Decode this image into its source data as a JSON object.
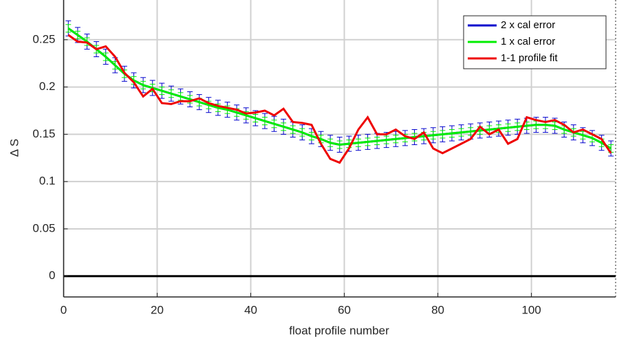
{
  "chart_data": {
    "type": "line",
    "xlabel": "float profile number",
    "ylabel": "Δ S",
    "x": [
      1,
      3,
      5,
      7,
      9,
      11,
      13,
      15,
      17,
      19,
      21,
      23,
      25,
      27,
      29,
      31,
      33,
      35,
      37,
      39,
      41,
      43,
      45,
      47,
      49,
      51,
      53,
      55,
      57,
      59,
      61,
      63,
      65,
      67,
      69,
      71,
      73,
      75,
      77,
      79,
      81,
      83,
      85,
      87,
      89,
      91,
      93,
      95,
      97,
      99,
      101,
      103,
      105,
      107,
      109,
      111,
      113,
      115,
      117
    ],
    "series": [
      {
        "name": "2 x cal error",
        "color": "#0000cc",
        "error": 0.008,
        "values": [
          0.262,
          0.255,
          0.248,
          0.24,
          0.232,
          0.223,
          0.214,
          0.207,
          0.202,
          0.199,
          0.196,
          0.193,
          0.19,
          0.187,
          0.184,
          0.181,
          0.178,
          0.176,
          0.173,
          0.17,
          0.167,
          0.164,
          0.161,
          0.158,
          0.155,
          0.152,
          0.148,
          0.145,
          0.141,
          0.139,
          0.14,
          0.141,
          0.142,
          0.143,
          0.144,
          0.145,
          0.146,
          0.147,
          0.148,
          0.149,
          0.15,
          0.151,
          0.152,
          0.153,
          0.154,
          0.155,
          0.156,
          0.157,
          0.158,
          0.159,
          0.16,
          0.16,
          0.159,
          0.155,
          0.152,
          0.149,
          0.146,
          0.141,
          0.135
        ]
      },
      {
        "name": "1 x cal error",
        "color": "#00ee00",
        "error": 0.004,
        "values": [
          0.262,
          0.255,
          0.248,
          0.24,
          0.232,
          0.223,
          0.214,
          0.207,
          0.202,
          0.199,
          0.196,
          0.193,
          0.19,
          0.187,
          0.184,
          0.181,
          0.178,
          0.176,
          0.173,
          0.17,
          0.167,
          0.164,
          0.161,
          0.158,
          0.155,
          0.152,
          0.148,
          0.145,
          0.141,
          0.139,
          0.14,
          0.141,
          0.142,
          0.143,
          0.144,
          0.145,
          0.146,
          0.147,
          0.148,
          0.149,
          0.15,
          0.151,
          0.152,
          0.153,
          0.154,
          0.155,
          0.156,
          0.157,
          0.158,
          0.159,
          0.16,
          0.16,
          0.159,
          0.155,
          0.152,
          0.149,
          0.146,
          0.141,
          0.135
        ]
      },
      {
        "name": "1-1 profile fit",
        "color": "#ee0000",
        "values": [
          0.255,
          0.248,
          0.247,
          0.24,
          0.243,
          0.232,
          0.215,
          0.205,
          0.19,
          0.198,
          0.183,
          0.182,
          0.185,
          0.185,
          0.188,
          0.183,
          0.18,
          0.178,
          0.176,
          0.172,
          0.173,
          0.175,
          0.17,
          0.177,
          0.163,
          0.162,
          0.16,
          0.14,
          0.124,
          0.12,
          0.135,
          0.155,
          0.168,
          0.15,
          0.15,
          0.155,
          0.148,
          0.145,
          0.152,
          0.135,
          0.13,
          0.135,
          0.14,
          0.145,
          0.158,
          0.15,
          0.155,
          0.14,
          0.145,
          0.168,
          0.165,
          0.163,
          0.165,
          0.16,
          0.152,
          0.155,
          0.15,
          0.145,
          0.13
        ]
      }
    ],
    "xlim": [
      0,
      118
    ],
    "ylim": [
      -0.022,
      0.292
    ],
    "xticks": [
      0,
      20,
      40,
      60,
      80,
      100
    ],
    "yticks": [
      0,
      0.05,
      0.1,
      0.15,
      0.2,
      0.25
    ],
    "grid": true,
    "legend": "upper right"
  }
}
